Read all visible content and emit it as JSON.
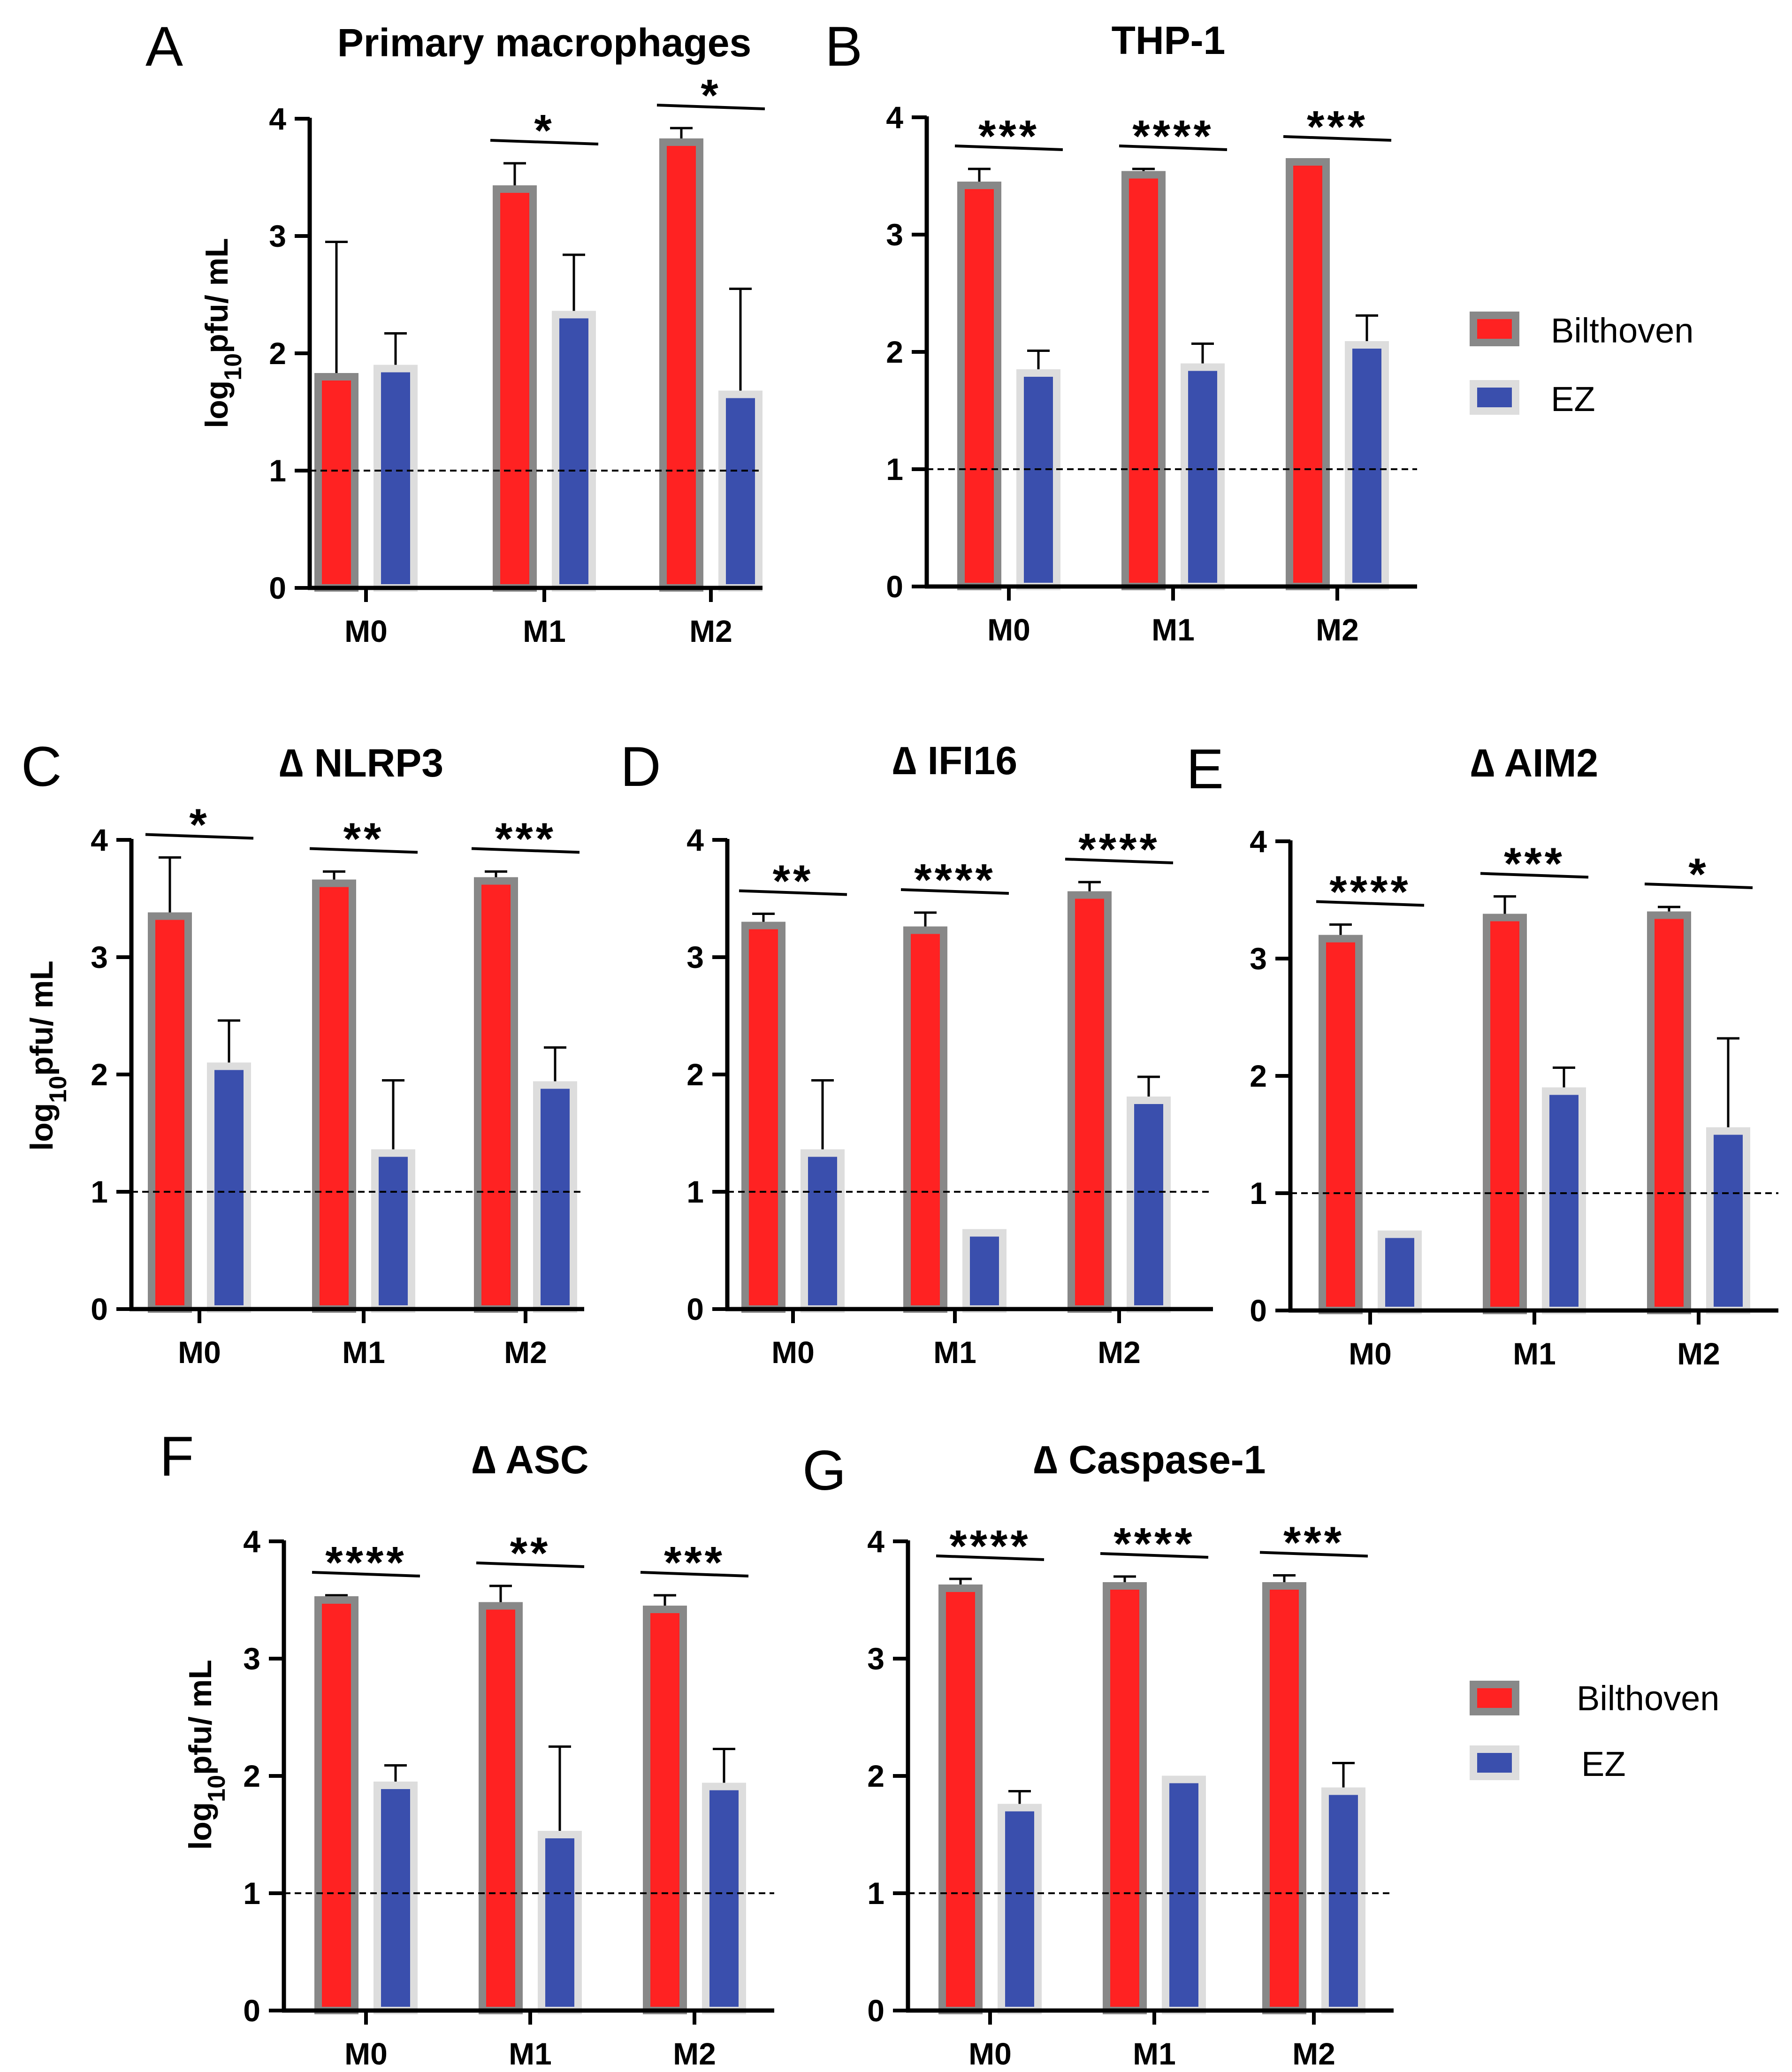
{
  "colors": {
    "bilthoven_fill": "#ff2222",
    "bilthoven_border": "#888888",
    "ez_fill": "#3a4fad",
    "ez_border": "#dddddd",
    "axis": "#000000",
    "dashed": "#000000"
  },
  "legends": [
    {
      "entries": [
        {
          "label": "Bilthoven",
          "series": "bilthoven"
        },
        {
          "label": "EZ",
          "series": "ez"
        }
      ]
    },
    {
      "entries": [
        {
          "label": "Bilthoven",
          "series": "bilthoven"
        },
        {
          "label": "EZ",
          "series": "ez"
        }
      ]
    }
  ],
  "chart_data": [
    {
      "type": "bar",
      "letter": "A",
      "title": "Primary macrophages",
      "ylabel_main": "log",
      "ylabel_sub": "10",
      "ylabel_rest": "pfu/ mL",
      "ylim": [
        0,
        4
      ],
      "yticks": [
        "0",
        "1",
        "2",
        "3",
        "4"
      ],
      "threshold": 1,
      "categories": [
        "M0",
        "M1",
        "M2"
      ],
      "series": [
        {
          "name": "Bilthoven",
          "values": [
            1.8,
            3.4,
            3.8
          ],
          "errors": [
            1.15,
            0.22,
            0.12
          ]
        },
        {
          "name": "EZ",
          "values": [
            1.87,
            2.33,
            1.65
          ],
          "errors": [
            0.3,
            0.51,
            0.9
          ]
        }
      ],
      "significance": [
        "",
        "*",
        "*"
      ]
    },
    {
      "type": "bar",
      "letter": "B",
      "title": "THP-1",
      "ylabel_main": "",
      "ylabel_sub": "",
      "ylabel_rest": "",
      "ylim": [
        0,
        4
      ],
      "yticks": [
        "0",
        "1",
        "2",
        "3",
        "4"
      ],
      "threshold": 1,
      "categories": [
        "M0",
        "M1",
        "M2"
      ],
      "series": [
        {
          "name": "Bilthoven",
          "values": [
            3.42,
            3.51,
            3.62
          ],
          "errors": [
            0.14,
            0.05,
            0.02
          ]
        },
        {
          "name": "EZ",
          "values": [
            1.82,
            1.87,
            2.06
          ],
          "errors": [
            0.19,
            0.2,
            0.25
          ]
        }
      ],
      "significance": [
        "***",
        "****",
        "***"
      ]
    },
    {
      "type": "bar",
      "letter": "C",
      "title": "∆ NLRP3",
      "ylabel_main": "log",
      "ylabel_sub": "10",
      "ylabel_rest": "pfu/ mL",
      "ylim": [
        0,
        4
      ],
      "yticks": [
        "0",
        "1",
        "2",
        "3",
        "4"
      ],
      "threshold": 1,
      "categories": [
        "M0",
        "M1",
        "M2"
      ],
      "series": [
        {
          "name": "Bilthoven",
          "values": [
            3.35,
            3.63,
            3.65
          ],
          "errors": [
            0.5,
            0.1,
            0.08
          ]
        },
        {
          "name": "EZ",
          "values": [
            2.07,
            1.33,
            1.91
          ],
          "errors": [
            0.39,
            0.62,
            0.32
          ]
        }
      ],
      "significance": [
        "*",
        "**",
        "***"
      ]
    },
    {
      "type": "bar",
      "letter": "D",
      "title": "∆ IFI16",
      "ylabel_main": "",
      "ylabel_sub": "",
      "ylabel_rest": "",
      "ylim": [
        0,
        4
      ],
      "yticks": [
        "0",
        "1",
        "2",
        "3",
        "4"
      ],
      "threshold": 1,
      "categories": [
        "M0",
        "M1",
        "M2"
      ],
      "series": [
        {
          "name": "Bilthoven",
          "values": [
            3.27,
            3.23,
            3.53
          ],
          "errors": [
            0.1,
            0.15,
            0.11
          ]
        },
        {
          "name": "EZ",
          "values": [
            1.33,
            0.65,
            1.78
          ],
          "errors": [
            0.62,
            0,
            0.2
          ]
        }
      ],
      "significance": [
        "**",
        "****",
        "****"
      ]
    },
    {
      "type": "bar",
      "letter": "E",
      "title": "∆ AIM2",
      "ylabel_main": "",
      "ylabel_sub": "",
      "ylabel_rest": "",
      "ylim": [
        0,
        4
      ],
      "yticks": [
        "0",
        "1",
        "2",
        "3",
        "4"
      ],
      "threshold": 1,
      "categories": [
        "M0",
        "M1",
        "M2"
      ],
      "series": [
        {
          "name": "Bilthoven",
          "values": [
            3.17,
            3.35,
            3.37
          ],
          "errors": [
            0.12,
            0.18,
            0.07
          ]
        },
        {
          "name": "EZ",
          "values": [
            0.65,
            1.87,
            1.53
          ],
          "errors": [
            0,
            0.2,
            0.79
          ]
        }
      ],
      "significance": [
        "****",
        "***",
        "*"
      ]
    },
    {
      "type": "bar",
      "letter": "F",
      "title": "∆ ASC",
      "ylabel_main": "log",
      "ylabel_sub": "10",
      "ylabel_rest": "pfu/ mL",
      "ylim": [
        0,
        4
      ],
      "yticks": [
        "0",
        "1",
        "2",
        "3",
        "4"
      ],
      "threshold": 1,
      "categories": [
        "M0",
        "M1",
        "M2"
      ],
      "series": [
        {
          "name": "Bilthoven",
          "values": [
            3.5,
            3.45,
            3.42
          ],
          "errors": [
            0.04,
            0.17,
            0.12
          ]
        },
        {
          "name": "EZ",
          "values": [
            1.92,
            1.5,
            1.91
          ],
          "errors": [
            0.17,
            0.75,
            0.32
          ]
        }
      ],
      "significance": [
        "****",
        "**",
        "***"
      ]
    },
    {
      "type": "bar",
      "letter": "G",
      "title": "∆ Caspase-1",
      "ylabel_main": "",
      "ylabel_sub": "",
      "ylabel_rest": "",
      "ylim": [
        0,
        4
      ],
      "yticks": [
        "0",
        "1",
        "2",
        "3",
        "4"
      ],
      "threshold": 1,
      "categories": [
        "M0",
        "M1",
        "M2"
      ],
      "series": [
        {
          "name": "Bilthoven",
          "values": [
            3.6,
            3.62,
            3.62
          ],
          "errors": [
            0.08,
            0.08,
            0.09
          ]
        },
        {
          "name": "EZ",
          "values": [
            1.73,
            1.97,
            1.87
          ],
          "errors": [
            0.14,
            0,
            0.24
          ]
        }
      ],
      "significance": [
        "****",
        "****",
        "***"
      ]
    }
  ]
}
